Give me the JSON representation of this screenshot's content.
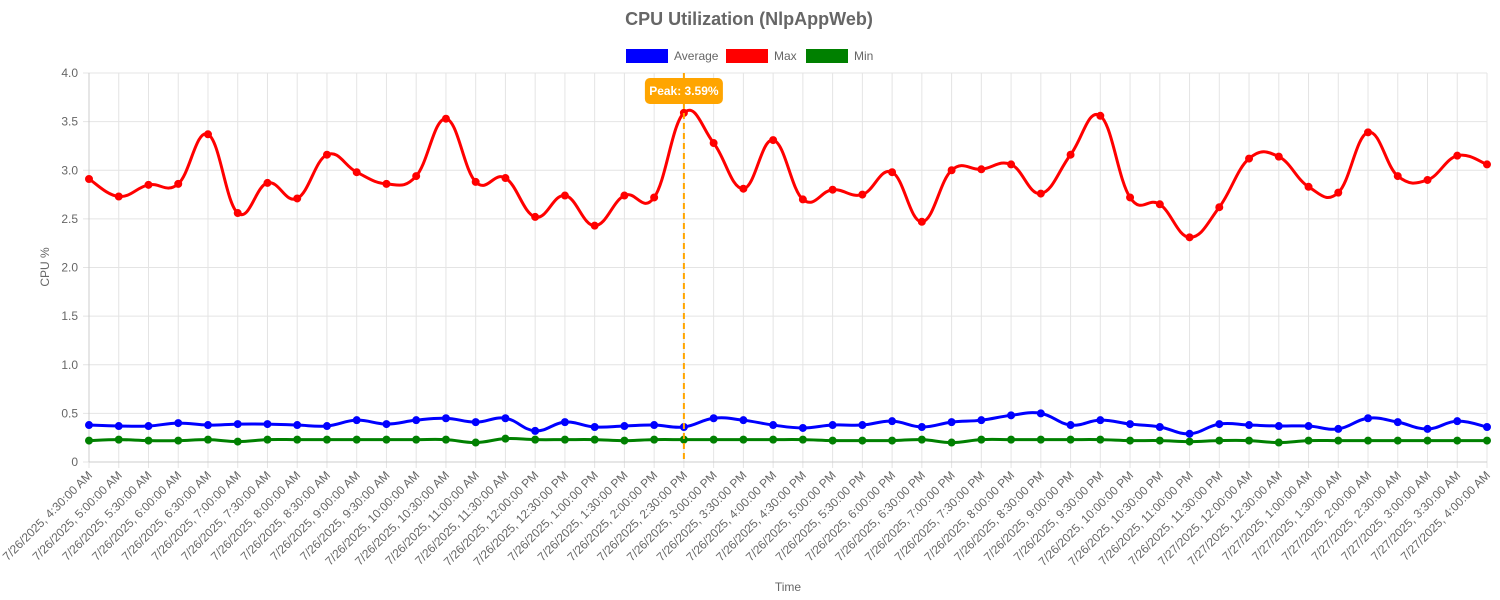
{
  "chart_data": {
    "type": "line",
    "title": "CPU Utilization (NlpAppWeb)",
    "xlabel": "Time",
    "ylabel": "CPU %",
    "ylim": [
      0,
      4
    ],
    "y_ticks": [
      "0",
      "0.5",
      "1.0",
      "1.5",
      "2.0",
      "2.5",
      "3.0",
      "3.5",
      "4.0"
    ],
    "grid": true,
    "legend_position": "top-center",
    "categories": [
      "7/26/2025, 4:30:00 AM",
      "7/26/2025, 5:00:00 AM",
      "7/26/2025, 5:30:00 AM",
      "7/26/2025, 6:00:00 AM",
      "7/26/2025, 6:30:00 AM",
      "7/26/2025, 7:00:00 AM",
      "7/26/2025, 7:30:00 AM",
      "7/26/2025, 8:00:00 AM",
      "7/26/2025, 8:30:00 AM",
      "7/26/2025, 9:00:00 AM",
      "7/26/2025, 9:30:00 AM",
      "7/26/2025, 10:00:00 AM",
      "7/26/2025, 10:30:00 AM",
      "7/26/2025, 11:00:00 AM",
      "7/26/2025, 11:30:00 AM",
      "7/26/2025, 12:00:00 PM",
      "7/26/2025, 12:30:00 PM",
      "7/26/2025, 1:00:00 PM",
      "7/26/2025, 1:30:00 PM",
      "7/26/2025, 2:00:00 PM",
      "7/26/2025, 2:30:00 PM",
      "7/26/2025, 3:00:00 PM",
      "7/26/2025, 3:30:00 PM",
      "7/26/2025, 4:00:00 PM",
      "7/26/2025, 4:30:00 PM",
      "7/26/2025, 5:00:00 PM",
      "7/26/2025, 5:30:00 PM",
      "7/26/2025, 6:00:00 PM",
      "7/26/2025, 6:30:00 PM",
      "7/26/2025, 7:00:00 PM",
      "7/26/2025, 7:30:00 PM",
      "7/26/2025, 8:00:00 PM",
      "7/26/2025, 8:30:00 PM",
      "7/26/2025, 9:00:00 PM",
      "7/26/2025, 9:30:00 PM",
      "7/26/2025, 10:00:00 PM",
      "7/26/2025, 10:30:00 PM",
      "7/26/2025, 11:00:00 PM",
      "7/26/2025, 11:30:00 PM",
      "7/27/2025, 12:00:00 AM",
      "7/27/2025, 12:30:00 AM",
      "7/27/2025, 1:00:00 AM",
      "7/27/2025, 1:30:00 AM",
      "7/27/2025, 2:00:00 AM",
      "7/27/2025, 2:30:00 AM",
      "7/27/2025, 3:00:00 AM",
      "7/27/2025, 3:30:00 AM",
      "7/27/2025, 4:00:00 AM"
    ],
    "series": [
      {
        "name": "Average",
        "color": "#0000ff",
        "values": [
          0.38,
          0.37,
          0.37,
          0.4,
          0.38,
          0.39,
          0.39,
          0.38,
          0.37,
          0.43,
          0.39,
          0.43,
          0.45,
          0.41,
          0.45,
          0.32,
          0.41,
          0.36,
          0.37,
          0.38,
          0.36,
          0.45,
          0.43,
          0.38,
          0.35,
          0.38,
          0.38,
          0.42,
          0.36,
          0.41,
          0.43,
          0.48,
          0.5,
          0.38,
          0.43,
          0.39,
          0.36,
          0.29,
          0.39,
          0.38,
          0.37,
          0.37,
          0.34,
          0.45,
          0.41,
          0.34,
          0.42,
          0.36
        ]
      },
      {
        "name": "Max",
        "color": "#ff0000",
        "values": [
          2.91,
          2.73,
          2.85,
          2.86,
          3.37,
          2.56,
          2.87,
          2.71,
          3.16,
          2.98,
          2.86,
          2.94,
          3.53,
          2.88,
          2.92,
          2.52,
          2.74,
          2.43,
          2.74,
          2.72,
          3.59,
          3.28,
          2.81,
          3.31,
          2.7,
          2.8,
          2.75,
          2.98,
          2.47,
          3.0,
          3.01,
          3.06,
          2.76,
          3.16,
          3.56,
          2.72,
          2.65,
          2.31,
          2.62,
          3.12,
          3.14,
          2.83,
          2.77,
          3.39,
          2.94,
          2.9,
          3.15,
          3.06
        ]
      },
      {
        "name": "Min",
        "color": "#008000",
        "values": [
          0.22,
          0.23,
          0.22,
          0.22,
          0.23,
          0.21,
          0.23,
          0.23,
          0.23,
          0.23,
          0.23,
          0.23,
          0.23,
          0.2,
          0.24,
          0.23,
          0.23,
          0.23,
          0.22,
          0.23,
          0.23,
          0.23,
          0.23,
          0.23,
          0.23,
          0.22,
          0.22,
          0.22,
          0.23,
          0.2,
          0.23,
          0.23,
          0.23,
          0.23,
          0.23,
          0.22,
          0.22,
          0.21,
          0.22,
          0.22,
          0.2,
          0.22,
          0.22,
          0.22,
          0.22,
          0.22,
          0.22,
          0.22
        ]
      }
    ],
    "annotations": [
      {
        "label": "Peak: 3.59%",
        "x": "7/26/2025, 2:30:00 PM",
        "value": 3.59,
        "color": "#ffa500",
        "style": "dashed vertical line"
      }
    ]
  }
}
